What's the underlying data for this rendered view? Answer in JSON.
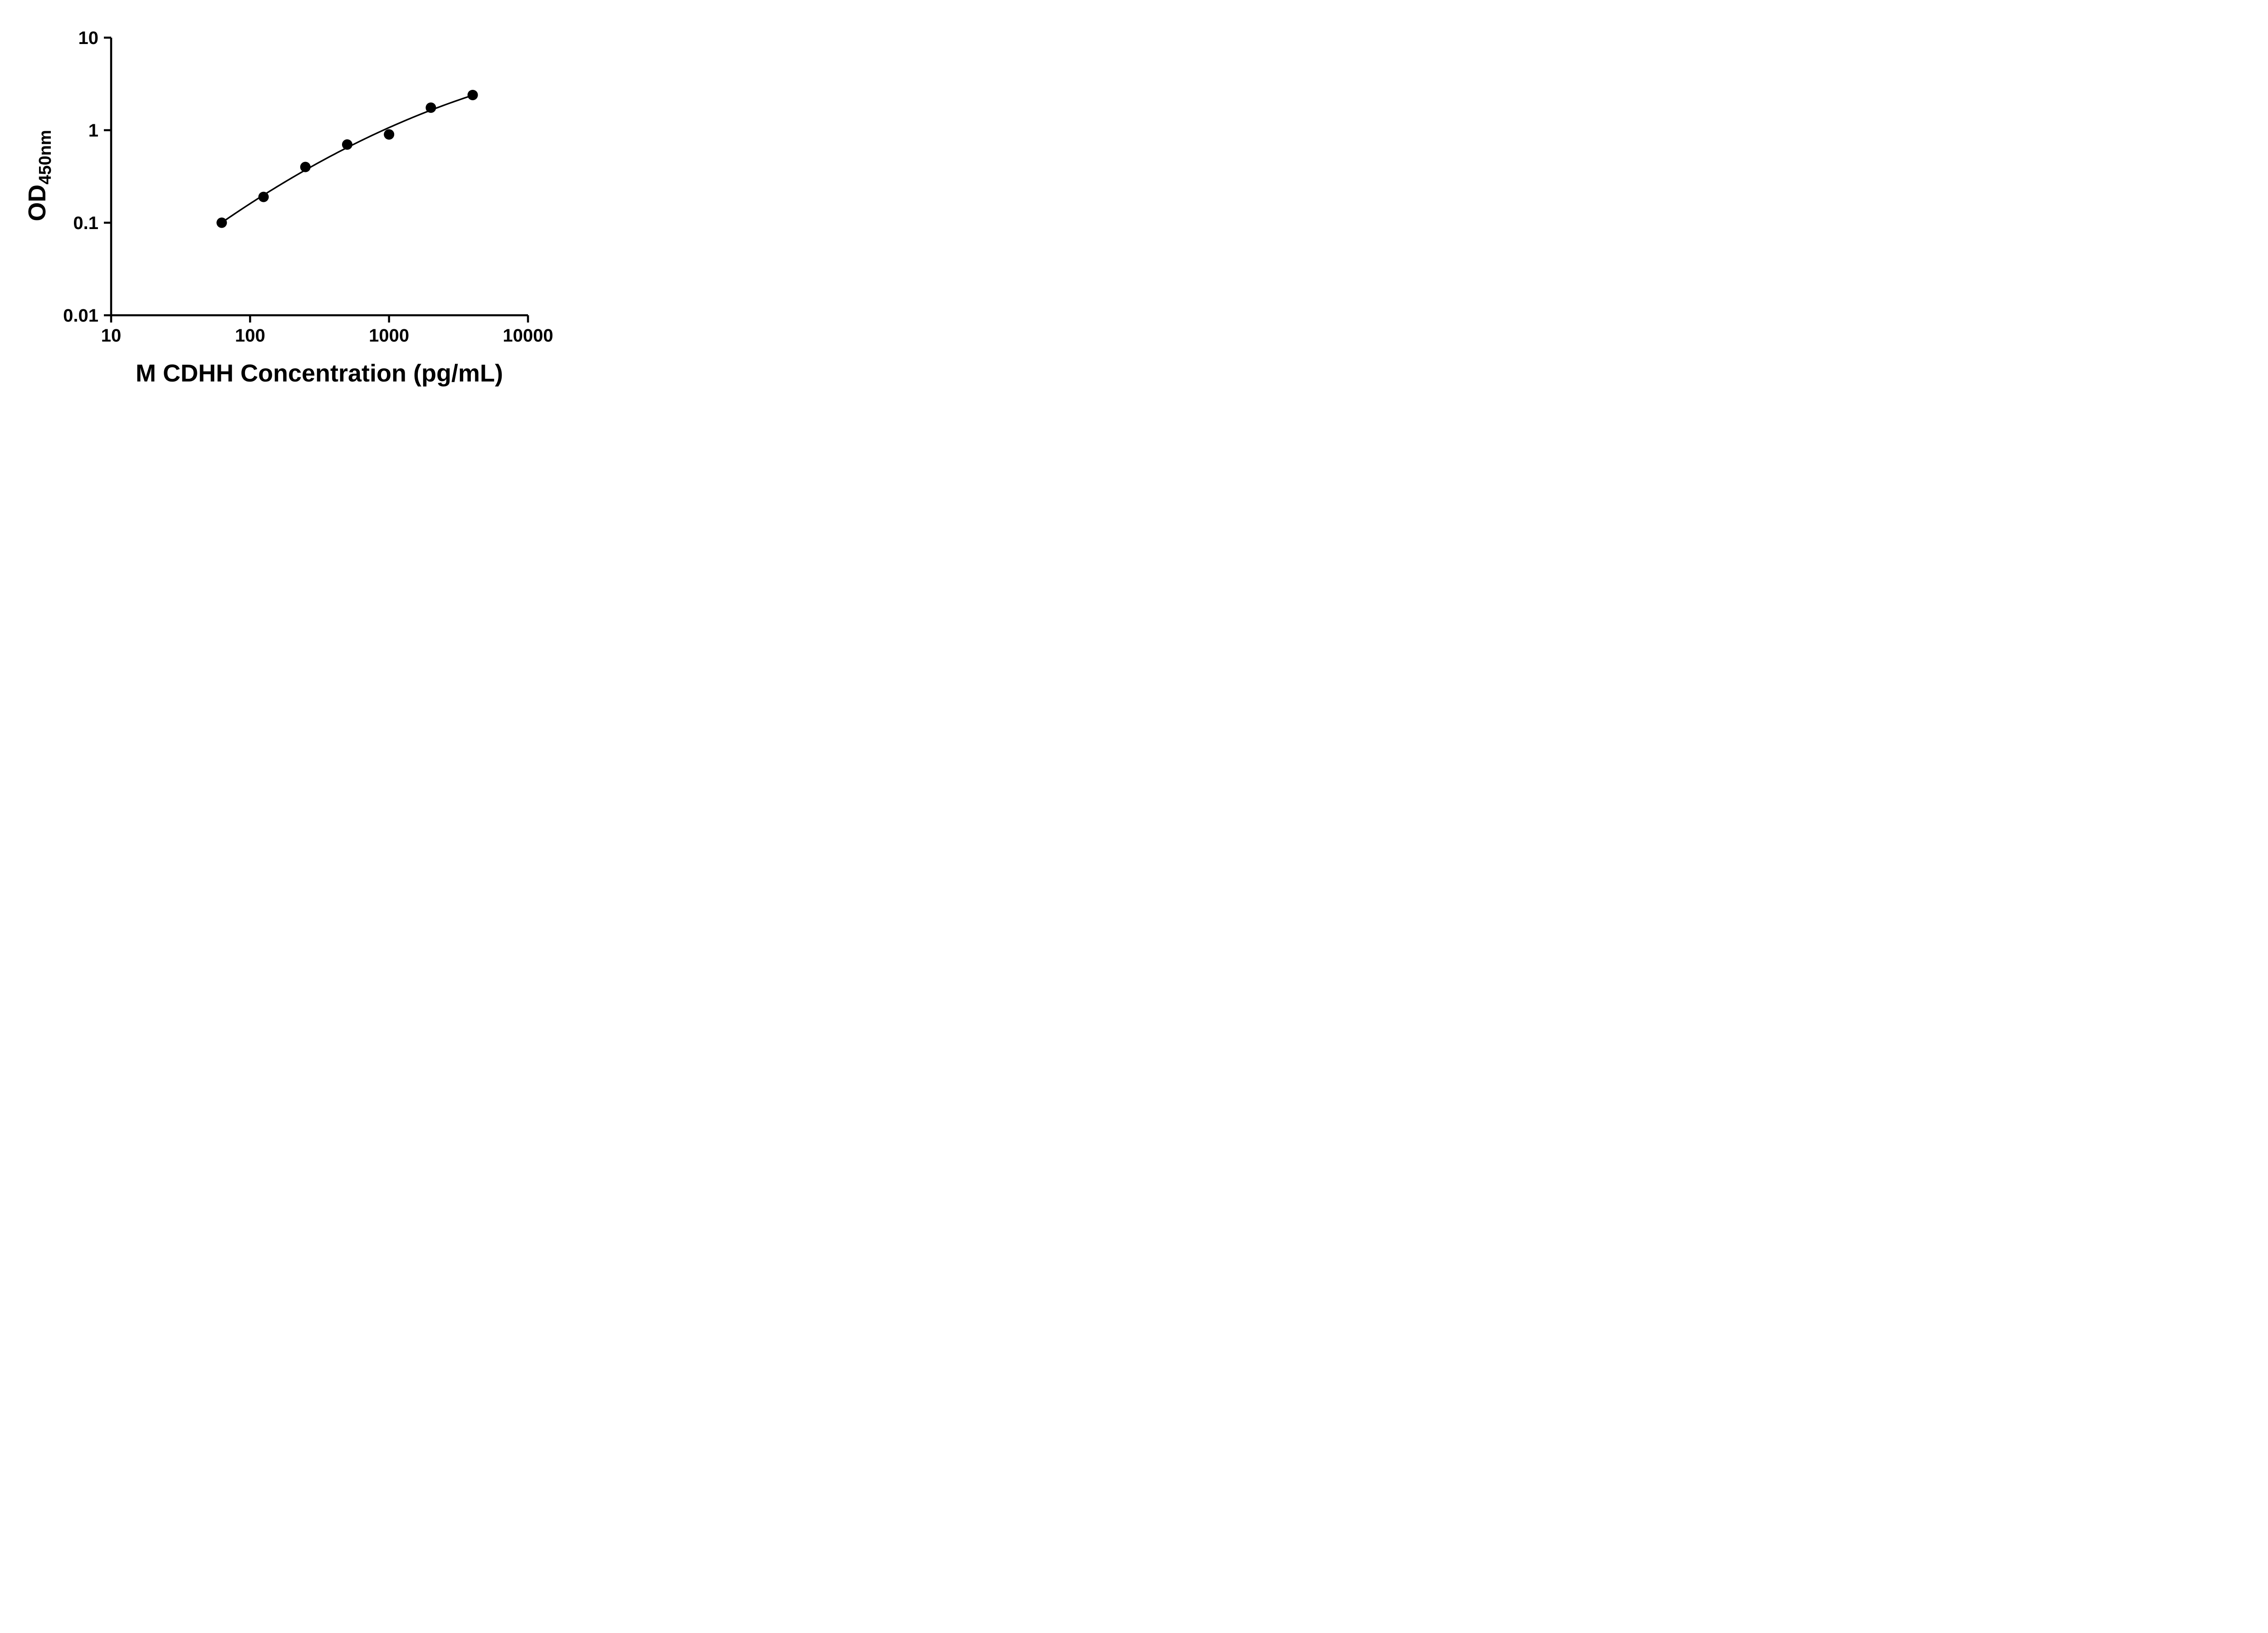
{
  "page": {
    "background": "#ffffff"
  },
  "chart_data": {
    "type": "scatter",
    "title": "",
    "xlabel": "M CDHH Concentration (pg/mL)",
    "ylabel_main": "OD",
    "ylabel_sub": "450nm",
    "x_scale": "log",
    "y_scale": "log",
    "xlim": [
      10,
      10000
    ],
    "ylim": [
      0.01,
      10
    ],
    "x_ticks": [
      10,
      100,
      1000,
      10000
    ],
    "x_tick_labels": [
      "10",
      "100",
      "1000",
      "10000"
    ],
    "y_ticks": [
      0.01,
      0.1,
      1,
      10
    ],
    "y_tick_labels": [
      "0.01",
      "0.1",
      "1",
      "10"
    ],
    "grid": false,
    "legend": false,
    "marker_color": "#000000",
    "curve_color": "#000000",
    "axis_color": "#000000",
    "series": [
      {
        "marker": "circle",
        "points": [
          {
            "x": 62.5,
            "y": 0.1
          },
          {
            "x": 125,
            "y": 0.19
          },
          {
            "x": 250,
            "y": 0.4
          },
          {
            "x": 500,
            "y": 0.7
          },
          {
            "x": 1000,
            "y": 0.9
          },
          {
            "x": 2000,
            "y": 1.75
          },
          {
            "x": 4000,
            "y": 2.4
          }
        ],
        "trendline": "smooth-fit-loglog"
      }
    ]
  }
}
